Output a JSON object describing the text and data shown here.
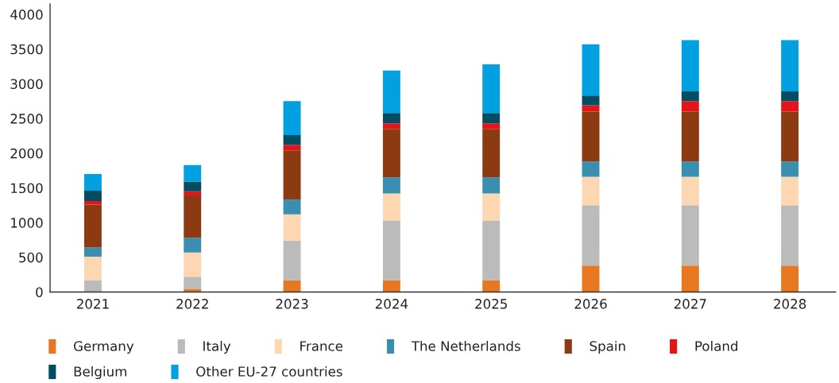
{
  "chart_data": {
    "type": "bar",
    "stacked": true,
    "categories": [
      "2021",
      "2022",
      "2023",
      "2024",
      "2025",
      "2026",
      "2027",
      "2028"
    ],
    "series": [
      {
        "name": "Germany",
        "color": "#e87722",
        "values": [
          0,
          40,
          170,
          170,
          170,
          380,
          380,
          380
        ]
      },
      {
        "name": "Italy",
        "color": "#bbbbb9",
        "values": [
          170,
          180,
          570,
          860,
          860,
          870,
          870,
          870
        ]
      },
      {
        "name": "France",
        "color": "#fdd7b2",
        "values": [
          340,
          350,
          380,
          390,
          390,
          410,
          410,
          410
        ]
      },
      {
        "name": "The Netherlands",
        "color": "#3a8fb0",
        "values": [
          130,
          210,
          210,
          230,
          230,
          220,
          220,
          220
        ]
      },
      {
        "name": "Spain",
        "color": "#8b3a12",
        "values": [
          620,
          610,
          710,
          700,
          700,
          720,
          720,
          720
        ]
      },
      {
        "name": "Poland",
        "color": "#e31518",
        "values": [
          50,
          60,
          80,
          80,
          80,
          90,
          150,
          150
        ]
      },
      {
        "name": "Belgium",
        "color": "#034d63",
        "values": [
          150,
          140,
          140,
          150,
          150,
          140,
          140,
          140
        ]
      },
      {
        "name": "Other EU-27 countries",
        "color": "#00a0e1",
        "values": [
          240,
          240,
          490,
          610,
          700,
          740,
          740,
          740
        ]
      }
    ],
    "ylim": [
      0,
      4150
    ],
    "yticks": [
      0,
      500,
      1000,
      1500,
      2000,
      2500,
      3000,
      3500,
      4000
    ],
    "grid": false,
    "legend": "bottom"
  }
}
